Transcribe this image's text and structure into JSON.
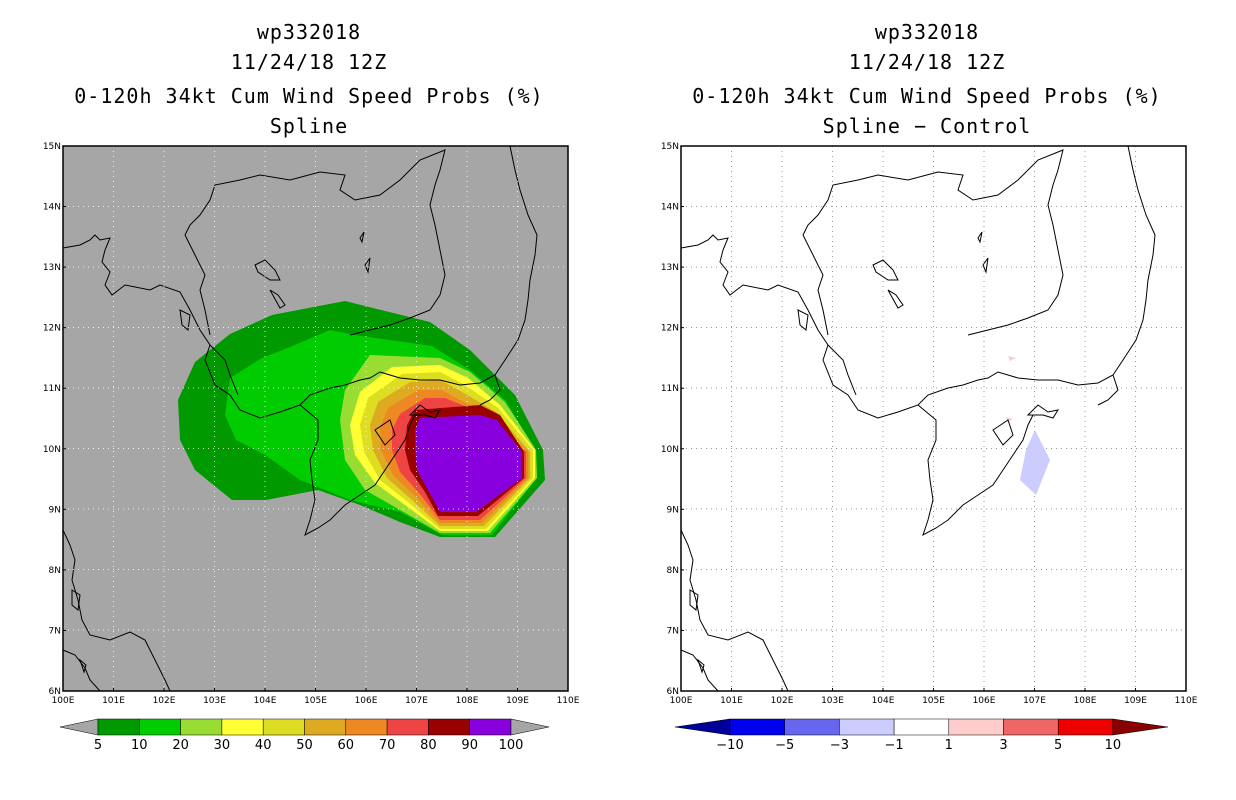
{
  "left": {
    "title_id": "wp332018",
    "title_date": "11/24/18 12Z",
    "title_field": "0-120h 34kt Cum Wind Speed Probs (%)",
    "title_sub": "Spline",
    "lat_labels": [
      "15N",
      "14N",
      "13N",
      "12N",
      "11N",
      "10N",
      "9N",
      "8N",
      "7N",
      "6N"
    ],
    "lon_labels": [
      "100E",
      "101E",
      "102E",
      "103E",
      "104E",
      "105E",
      "106E",
      "107E",
      "108E",
      "109E",
      "110E"
    ],
    "colorbar": {
      "colors": [
        "#009900",
        "#00cc00",
        "#99dd33",
        "#ffff33",
        "#dddd22",
        "#ddaa22",
        "#ee8822",
        "#ee4444",
        "#990000",
        "#8800dd"
      ],
      "labels": [
        "5",
        "10",
        "20",
        "30",
        "40",
        "50",
        "60",
        "70",
        "80",
        "90",
        "100"
      ]
    },
    "background_color": "#a6a6a6"
  },
  "right": {
    "title_id": "wp332018",
    "title_date": "11/24/18 12Z",
    "title_field": "0-120h 34kt Cum Wind Speed Probs (%)",
    "title_sub": "Spline − Control",
    "lat_labels": [
      "15N",
      "14N",
      "13N",
      "12N",
      "11N",
      "10N",
      "9N",
      "8N",
      "7N",
      "6N"
    ],
    "lon_labels": [
      "100E",
      "101E",
      "102E",
      "103E",
      "104E",
      "105E",
      "106E",
      "107E",
      "108E",
      "109E",
      "110E"
    ],
    "colorbar": {
      "colors": [
        "#000099",
        "#0000ee",
        "#6666ee",
        "#ccccff",
        "#ffffff",
        "#ffcccc",
        "#ee6666",
        "#ee0000",
        "#880000"
      ],
      "labels": [
        "−10",
        "−5",
        "−3",
        "−1",
        "1",
        "3",
        "5",
        "10"
      ]
    }
  }
}
